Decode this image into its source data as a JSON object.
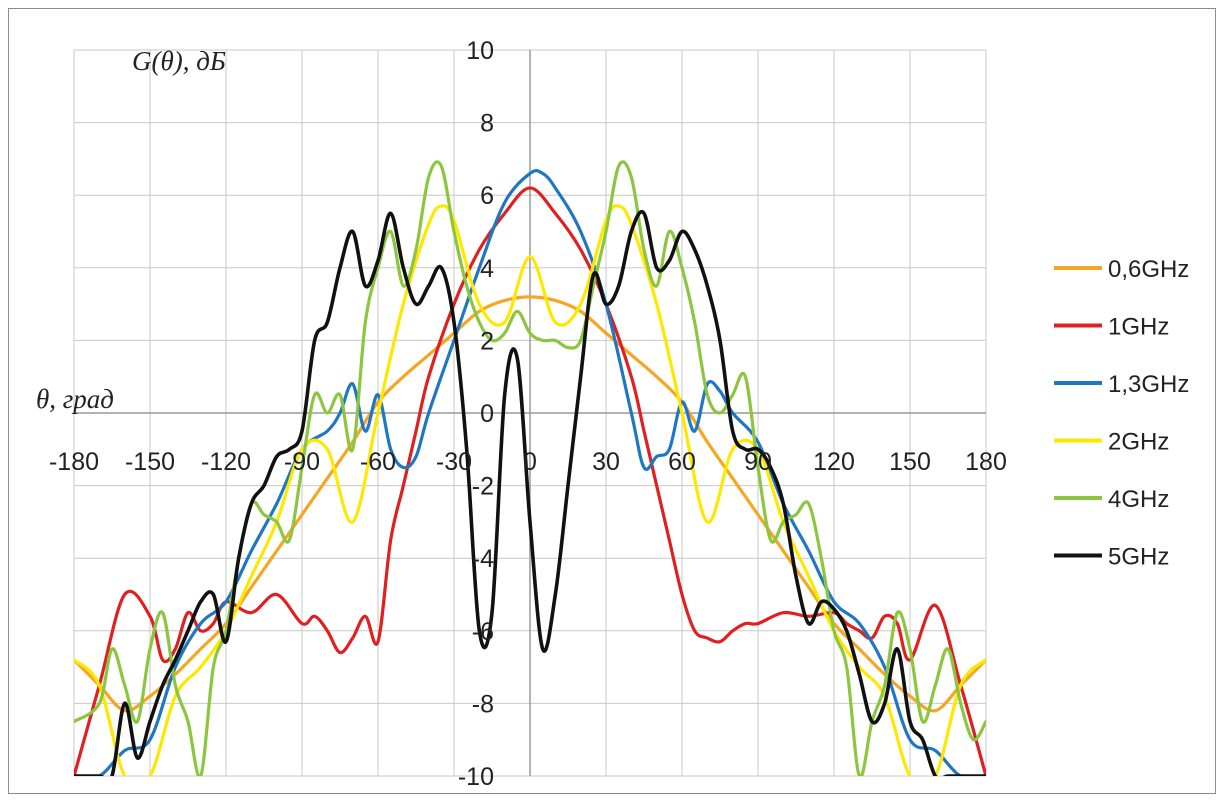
{
  "chart_data": {
    "type": "line",
    "title": "",
    "xlabel": "θ, град",
    "ylabel": "G(θ), дБ",
    "xlim": [
      -180,
      180
    ],
    "ylim": [
      -10,
      10
    ],
    "x_ticks": [
      "-180",
      "-150",
      "-120",
      "-90",
      "-60",
      "-30",
      "0",
      "30",
      "60",
      "90",
      "120",
      "150",
      "180"
    ],
    "y_ticks": [
      "10",
      "8",
      "6",
      "4",
      "2",
      "0",
      "-2",
      "-4",
      "-6",
      "-8",
      "-10"
    ],
    "grid": true,
    "legend_position": "right",
    "series": [
      {
        "name": "0,6GHz",
        "color": "#f5a623",
        "x": [
          -180,
          -170,
          -160,
          -150,
          -140,
          -130,
          -120,
          -110,
          -100,
          -90,
          -80,
          -70,
          -60,
          -50,
          -40,
          -30,
          -20,
          -10,
          0,
          10,
          20,
          30,
          40,
          50,
          60,
          70,
          80,
          90,
          100,
          110,
          120,
          130,
          140,
          150,
          160,
          170,
          180
        ],
        "y": [
          -6.8,
          -7.5,
          -8.2,
          -7.8,
          -7.2,
          -6.5,
          -5.8,
          -4.8,
          -3.8,
          -2.8,
          -1.8,
          -0.8,
          0.3,
          1.0,
          1.6,
          2.2,
          2.8,
          3.1,
          3.2,
          3.1,
          2.8,
          2.2,
          1.6,
          1.0,
          0.3,
          -0.8,
          -1.8,
          -2.8,
          -3.8,
          -4.8,
          -5.8,
          -6.5,
          -7.2,
          -7.8,
          -8.2,
          -7.5,
          -6.8
        ]
      },
      {
        "name": "1GHz",
        "color": "#e02020",
        "x": [
          -180,
          -170,
          -160,
          -150,
          -145,
          -140,
          -135,
          -130,
          -125,
          -120,
          -110,
          -100,
          -90,
          -85,
          -80,
          -75,
          -70,
          -65,
          -60,
          -55,
          -50,
          -45,
          -40,
          -30,
          -20,
          -10,
          0,
          10,
          20,
          30,
          40,
          45,
          50,
          55,
          60,
          65,
          70,
          75,
          80,
          85,
          90,
          100,
          110,
          120,
          125,
          130,
          135,
          140,
          145,
          150,
          160,
          170,
          180
        ],
        "y": [
          -10,
          -7.5,
          -5.0,
          -5.6,
          -6.8,
          -6.5,
          -5.5,
          -6.0,
          -5.8,
          -5.2,
          -5.5,
          -5.0,
          -5.8,
          -5.6,
          -6.0,
          -6.6,
          -6.2,
          -5.6,
          -6.3,
          -3.5,
          -2.0,
          -0.5,
          1.0,
          3.0,
          4.5,
          5.5,
          6.2,
          5.5,
          4.5,
          3.0,
          1.0,
          -0.5,
          -2.0,
          -3.5,
          -5.0,
          -6.0,
          -6.2,
          -6.3,
          -6.0,
          -5.8,
          -5.8,
          -5.5,
          -5.6,
          -5.5,
          -5.8,
          -6.0,
          -6.2,
          -5.6,
          -5.8,
          -6.8,
          -5.3,
          -7.5,
          -10
        ]
      },
      {
        "name": "1,3GHz",
        "color": "#1f77c4",
        "x": [
          -180,
          -170,
          -160,
          -150,
          -140,
          -130,
          -120,
          -110,
          -100,
          -90,
          -80,
          -75,
          -70,
          -65,
          -60,
          -55,
          -50,
          -45,
          -40,
          -30,
          -20,
          -10,
          0,
          5,
          10,
          20,
          30,
          40,
          45,
          50,
          55,
          60,
          65,
          70,
          75,
          80,
          90,
          100,
          110,
          120,
          130,
          140,
          150,
          160,
          170,
          180
        ],
        "y": [
          -10,
          -10,
          -9.3,
          -9.0,
          -7.0,
          -5.8,
          -5.2,
          -3.8,
          -2.5,
          -1.0,
          -0.5,
          0.0,
          0.8,
          -0.5,
          0.5,
          -1.0,
          -1.5,
          -1.2,
          0.0,
          2.0,
          4.0,
          5.8,
          6.6,
          6.6,
          6.2,
          5.0,
          3.0,
          0.0,
          -1.5,
          -1.2,
          -1.0,
          0.3,
          -0.5,
          0.8,
          0.6,
          0.0,
          -0.8,
          -2.5,
          -3.8,
          -5.2,
          -5.8,
          -7.0,
          -9.0,
          -9.3,
          -10,
          -10
        ]
      },
      {
        "name": "2GHz",
        "color": "#ffe800",
        "x": [
          -180,
          -170,
          -160,
          -150,
          -140,
          -130,
          -120,
          -110,
          -100,
          -90,
          -80,
          -70,
          -60,
          -50,
          -40,
          -35,
          -30,
          -20,
          -10,
          0,
          10,
          20,
          30,
          35,
          40,
          50,
          60,
          70,
          80,
          90,
          100,
          110,
          120,
          130,
          140,
          150,
          160,
          170,
          180
        ],
        "y": [
          -6.8,
          -7.5,
          -10,
          -10,
          -7.8,
          -7.0,
          -6.0,
          -4.5,
          -3.0,
          -1.0,
          -1.0,
          -3.0,
          0.0,
          3.0,
          5.2,
          5.7,
          5.3,
          3.0,
          2.5,
          4.3,
          2.5,
          3.0,
          5.3,
          5.7,
          5.2,
          3.0,
          0.0,
          -3.0,
          -1.0,
          -1.0,
          -3.0,
          -4.5,
          -6.0,
          -7.0,
          -7.8,
          -10,
          -10,
          -7.5,
          -6.8
        ]
      },
      {
        "name": "4GHz",
        "color": "#8cc63e",
        "x": [
          -180,
          -170,
          -165,
          -160,
          -155,
          -150,
          -145,
          -140,
          -135,
          -130,
          -125,
          -120,
          -115,
          -110,
          -105,
          -100,
          -95,
          -90,
          -85,
          -80,
          -75,
          -70,
          -65,
          -60,
          -55,
          -50,
          -45,
          -40,
          -35,
          -30,
          -25,
          -20,
          -15,
          -10,
          -5,
          0,
          5,
          10,
          15,
          20,
          25,
          30,
          35,
          40,
          45,
          50,
          55,
          60,
          65,
          70,
          75,
          80,
          85,
          90,
          95,
          100,
          105,
          110,
          115,
          120,
          125,
          130,
          135,
          140,
          145,
          150,
          155,
          160,
          165,
          170,
          175,
          180
        ],
        "y": [
          -8.5,
          -8.0,
          -6.5,
          -7.5,
          -8.5,
          -6.5,
          -5.5,
          -7.5,
          -8.5,
          -10,
          -7.0,
          -6.0,
          -4.0,
          -2.5,
          -2.8,
          -3.0,
          -3.5,
          -1.5,
          0.5,
          0.0,
          0.5,
          -1.0,
          2.5,
          4.0,
          5.0,
          3.5,
          4.5,
          6.5,
          6.8,
          5.0,
          3.5,
          2.5,
          2.0,
          2.2,
          2.8,
          2.2,
          2.0,
          2.0,
          1.8,
          2.0,
          3.5,
          5.0,
          6.8,
          6.5,
          4.5,
          3.5,
          5.0,
          4.0,
          2.5,
          0.5,
          0.0,
          0.5,
          1.0,
          -1.5,
          -3.5,
          -3.0,
          -2.8,
          -2.5,
          -4.0,
          -6.0,
          -7.0,
          -10,
          -8.5,
          -7.5,
          -5.5,
          -6.5,
          -8.5,
          -7.5,
          -6.5,
          -8.0,
          -9.0,
          -8.5
        ]
      },
      {
        "name": "5GHz",
        "color": "#111111",
        "x": [
          -180,
          -170,
          -165,
          -160,
          -155,
          -150,
          -145,
          -140,
          -135,
          -130,
          -125,
          -120,
          -115,
          -110,
          -105,
          -100,
          -95,
          -90,
          -85,
          -80,
          -75,
          -70,
          -65,
          -60,
          -55,
          -50,
          -45,
          -40,
          -35,
          -30,
          -25,
          -20,
          -15,
          -10,
          -5,
          0,
          5,
          10,
          15,
          20,
          25,
          30,
          35,
          40,
          45,
          50,
          55,
          60,
          65,
          70,
          75,
          80,
          85,
          90,
          95,
          100,
          105,
          110,
          115,
          120,
          125,
          130,
          135,
          140,
          145,
          150,
          155,
          160,
          165,
          170,
          175,
          180
        ],
        "y": [
          -10,
          -10,
          -10,
          -8.0,
          -9.5,
          -8.5,
          -7.5,
          -6.8,
          -6.0,
          -5.2,
          -5.0,
          -6.3,
          -4.0,
          -2.5,
          -2.0,
          -1.2,
          -1.0,
          -0.5,
          2.0,
          2.5,
          4.0,
          5.0,
          3.5,
          4.2,
          5.5,
          4.0,
          3.0,
          3.5,
          4.0,
          2.5,
          -1.0,
          -6.0,
          -5.5,
          0.5,
          1.5,
          -3.0,
          -6.5,
          -5.0,
          -2.0,
          1.0,
          3.8,
          3.0,
          3.5,
          5.0,
          5.5,
          4.0,
          4.2,
          5.0,
          4.5,
          3.5,
          2.0,
          -0.5,
          -1.0,
          -1.0,
          -1.5,
          -2.5,
          -4.5,
          -5.8,
          -5.2,
          -5.4,
          -6.0,
          -7.2,
          -8.5,
          -8.0,
          -6.5,
          -8.5,
          -9.0,
          -10,
          -10,
          -10,
          -10,
          -10
        ]
      }
    ]
  }
}
